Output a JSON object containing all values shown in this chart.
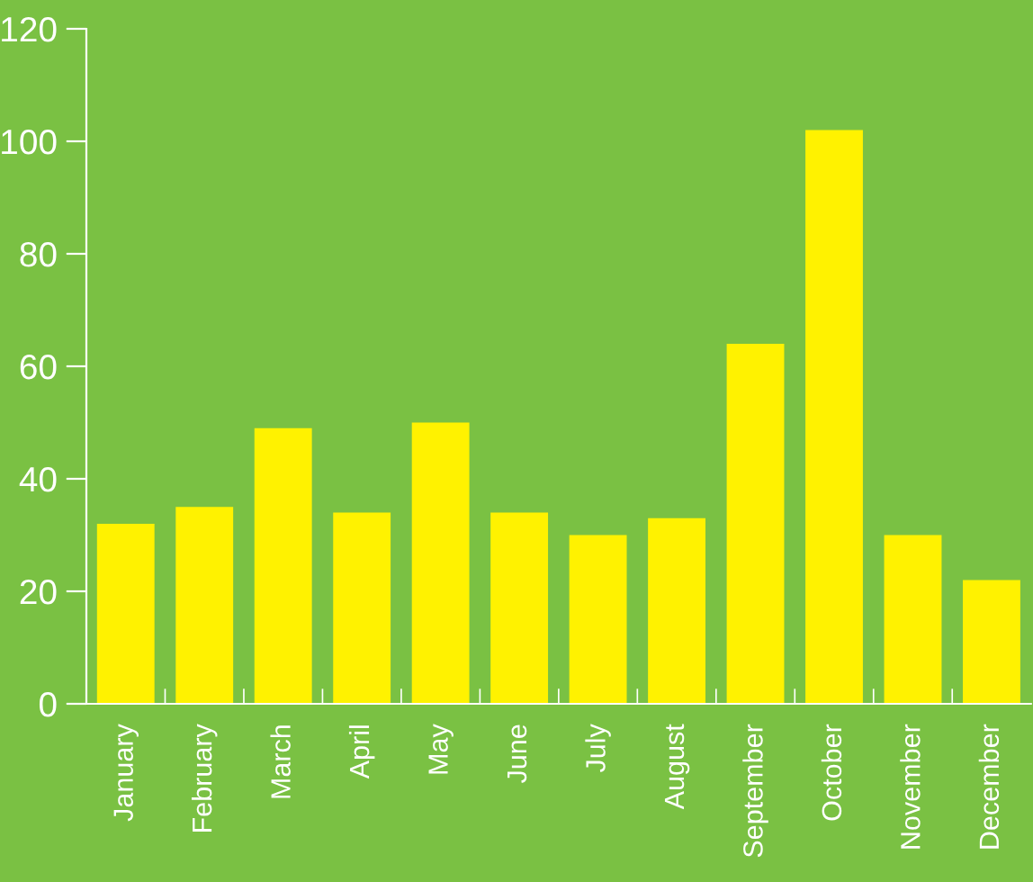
{
  "chart_data": {
    "type": "bar",
    "categories": [
      "January",
      "February",
      "March",
      "April",
      "May",
      "June",
      "July",
      "August",
      "September",
      "October",
      "November",
      "December"
    ],
    "values": [
      32,
      35,
      49,
      34,
      50,
      34,
      30,
      33,
      64,
      102,
      30,
      22
    ],
    "color": "#fff200",
    "ylim": [
      0,
      120
    ],
    "yticks": [
      0,
      20,
      40,
      60,
      80,
      100,
      120
    ],
    "grid": false
  }
}
